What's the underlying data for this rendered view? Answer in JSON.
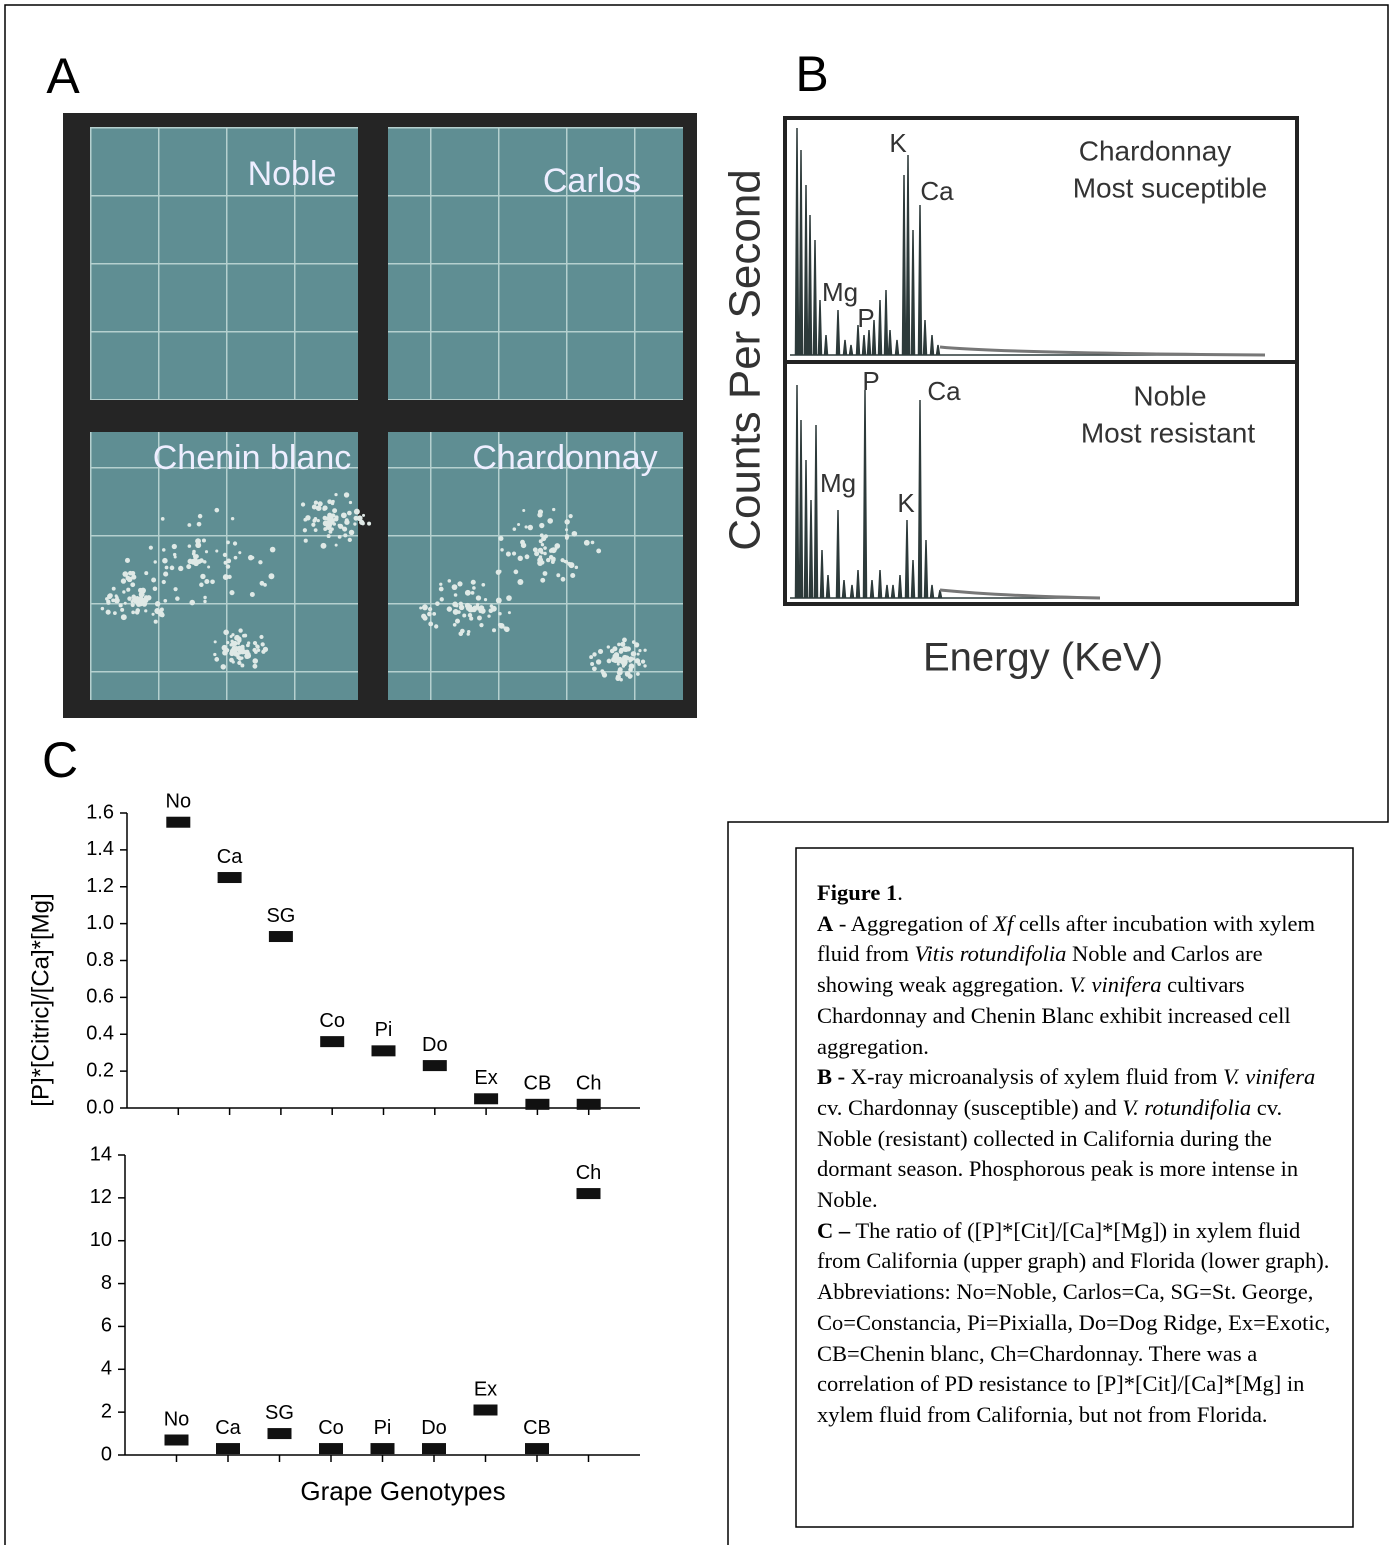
{
  "panels": {
    "a": {
      "label": "A",
      "quadrants": [
        "Noble",
        "Carlos",
        "Chenin blanc",
        "Chardonnay"
      ]
    },
    "b": {
      "label": "B",
      "y_label": "Counts Per Second",
      "x_label": "Energy (KeV)",
      "upper": {
        "sample": "Chardonnay",
        "note": "Most suceptible",
        "peaks": [
          "K",
          "Ca",
          "Mg",
          "P"
        ]
      },
      "lower": {
        "sample": "Noble",
        "note": "Most resistant",
        "peaks": [
          "P",
          "Ca",
          "Mg",
          "K"
        ]
      }
    },
    "c": {
      "label": "C"
    }
  },
  "chart_data": [
    {
      "type": "scatter",
      "y_label": "[P]*[Citric]/[Ca]*[Mg]",
      "color": "#111111",
      "categories": [
        "No",
        "Ca",
        "SG",
        "Co",
        "Pi",
        "Do",
        "Ex",
        "CB",
        "Ch"
      ],
      "values": [
        1.55,
        1.25,
        0.93,
        0.36,
        0.31,
        0.23,
        0.05,
        0.02,
        0.02
      ],
      "ylim": [
        0,
        1.6
      ],
      "yticks": [
        {
          "value": 0,
          "label": "0.0"
        },
        {
          "value": 0.2,
          "label": "0.2"
        },
        {
          "value": 0.4,
          "label": "0.4"
        },
        {
          "value": 0.6,
          "label": "0.6"
        },
        {
          "value": 0.8,
          "label": "0.8"
        },
        {
          "value": 1,
          "label": "1.0"
        },
        {
          "value": 1.2,
          "label": "1.2"
        },
        {
          "value": 1.4,
          "label": "1.4"
        },
        {
          "value": 1.6,
          "label": "1.6"
        }
      ]
    },
    {
      "type": "scatter",
      "x_label": "Grape Genotypes",
      "color": "#111111",
      "categories": [
        "No",
        "Ca",
        "SG",
        "Co",
        "Pi",
        "Do",
        "Ex",
        "CB",
        "Ch"
      ],
      "values": [
        0.7,
        0.3,
        1.0,
        0.3,
        0.3,
        0.3,
        2.1,
        0.3,
        12.2
      ],
      "ylim": [
        0,
        14
      ],
      "yticks": [
        0,
        2,
        4,
        6,
        8,
        10,
        12,
        14
      ]
    }
  ],
  "caption": {
    "paragraphs": [
      [
        "Figure 1",
        "."
      ],
      [
        "A",
        " - Aggregation of ",
        "Xf",
        " cells after incubation with xylem fluid from ",
        "Vitis rotundifolia",
        " Noble and Carlos are showing weak aggregation. ",
        "V. vinifera",
        " cultivars Chardonnay and Chenin Blanc exhibit increased cell aggregation."
      ],
      [
        "B -",
        " X-ray microanalysis of xylem fluid from ",
        "V. vinifera",
        " cv. Chardonnay (susceptible) and ",
        "V. rotundifolia",
        " cv. Noble (resistant) collected in California during the dormant season. Phosphorous peak is more intense in Noble."
      ],
      [
        "C –",
        " The ratio of ([P]*[Cit]/[Ca]*[Mg]) in xylem fluid from California (upper graph) and Florida (lower graph). Abbreviations: No=Noble, Carlos=Ca, SG=St. George, Co=Constancia, Pi=Pixialla, Do=Dog Ridge, Ex=Exotic, CB=Chenin blanc, Ch=Chardonnay. There was a correlation of PD resistance to [P]*[Cit]/[Ca]*[Mg] in xylem fluid from California, but not from Florida."
      ]
    ]
  }
}
